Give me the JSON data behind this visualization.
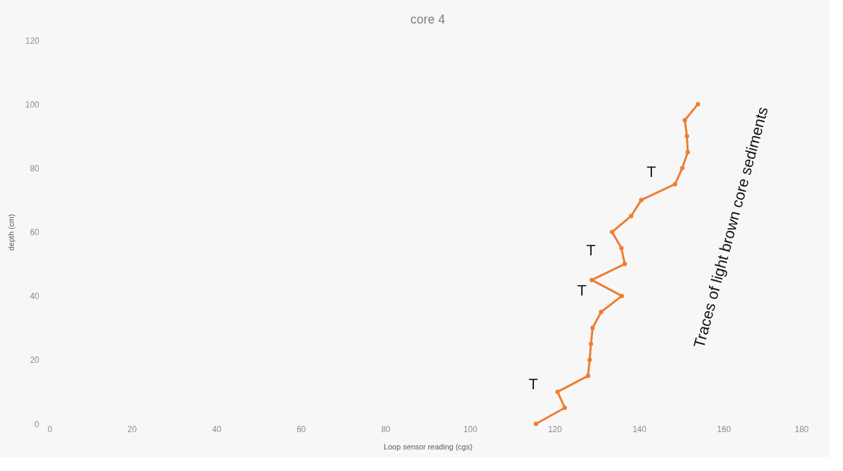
{
  "chart_data": {
    "type": "line",
    "title": "core 4",
    "xlabel": "Loop sensor reading (cgs)",
    "ylabel": "depth (cm)",
    "x": [
      115.6,
      122.4,
      120.7,
      127.9,
      128.3,
      128.6,
      129,
      131,
      135.9,
      128.8,
      136.6,
      135.8,
      133.6,
      138.1,
      140.5,
      148.5,
      150.2,
      151.5,
      151.3,
      150.8,
      153.9
    ],
    "series": [
      {
        "color": "#ed7d31",
        "values": [
          0,
          5,
          10,
          15,
          20,
          25,
          30,
          35,
          40,
          45,
          50,
          55,
          60,
          65,
          70,
          75,
          80,
          85,
          90,
          95,
          100
        ]
      }
    ],
    "xlim": [
      0,
      180
    ],
    "xticks": [
      0,
      20,
      40,
      60,
      80,
      100,
      120,
      140,
      160,
      180
    ],
    "ylim": [
      0,
      120
    ],
    "yticks": [
      0,
      20,
      40,
      60,
      80,
      100,
      120
    ],
    "marker": "circle",
    "line_style": "solid",
    "grid": false,
    "annotations": [
      "T",
      "T",
      "T",
      "T",
      "Traces of light brown core sediments"
    ]
  }
}
